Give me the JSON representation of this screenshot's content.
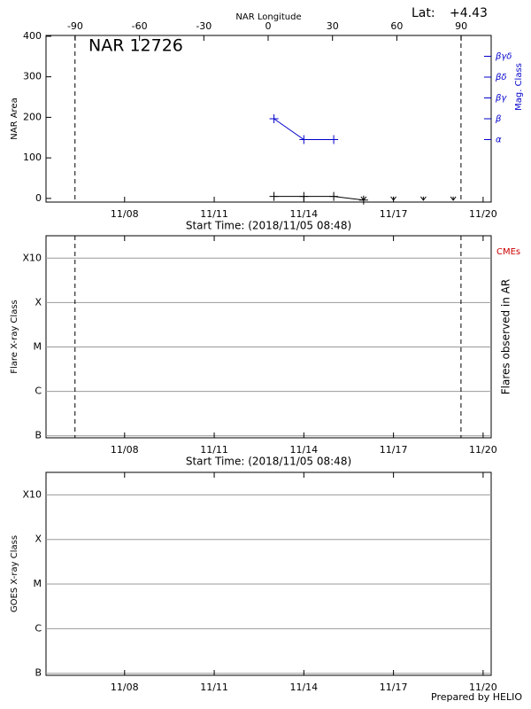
{
  "nar_label": "NAR 12726",
  "latitude": {
    "label": "Lat:",
    "value": "+4.43"
  },
  "prepared_by": "Prepared by HELIO",
  "chart_data": [
    {
      "type": "line",
      "xlabel": "Start Time: (2018/11/05 08:48)",
      "ylabel": "NAR Area",
      "y2label": "Mag. Class",
      "x2label": "NAR Longitude",
      "y2_color": "#0000cc",
      "xlim": [
        5.37,
        20.27
      ],
      "xticks": [
        {
          "value": 8,
          "label": "11/08"
        },
        {
          "value": 11,
          "label": "11/11"
        },
        {
          "value": 14,
          "label": "11/14"
        },
        {
          "value": 17,
          "label": "11/17"
        },
        {
          "value": 20,
          "label": "11/20"
        }
      ],
      "x2lim": [
        -103.6,
        104
      ],
      "x2ticks": [
        -90,
        -60,
        -30,
        0,
        30,
        60,
        90
      ],
      "ylim": [
        -9,
        402
      ],
      "yticks": [
        0,
        100,
        200,
        300,
        400
      ],
      "y2lim": [
        0,
        8
      ],
      "y2ticks": [
        {
          "value": 3,
          "label": "α"
        },
        {
          "value": 4,
          "label": "β"
        },
        {
          "value": 5,
          "label": "βγ"
        },
        {
          "value": 6,
          "label": "βδ"
        },
        {
          "value": 7,
          "label": "βγδ"
        }
      ],
      "limb_lines": [
        6.34,
        19.26
      ],
      "series": [
        {
          "x": [
            13,
            14,
            15,
            16
          ],
          "values": [
            5,
            5,
            5,
            -4
          ],
          "color": "#000000",
          "marker": "plus"
        },
        {
          "x": [
            13,
            14,
            15
          ],
          "values": [
            4,
            3,
            3
          ],
          "color": "#0000cc",
          "marker": "plus",
          "axis": "y2"
        },
        {
          "x": [
            16,
            17,
            18,
            19
          ],
          "values": [
            0,
            0,
            0,
            0
          ],
          "color": "#000000",
          "marker": "arrow",
          "line": false
        }
      ]
    },
    {
      "type": "line",
      "xlabel": "Start Time: (2018/11/05 08:48)",
      "ylabel": "Flare X-ray Class",
      "y2label": "Flares observed in AR",
      "annotation": "CMEs",
      "annotation_color": "#cc0000",
      "xlim": [
        5.37,
        20.27
      ],
      "xticks": [
        {
          "value": 8,
          "label": "11/08"
        },
        {
          "value": 11,
          "label": "11/11"
        },
        {
          "value": 14,
          "label": "11/14"
        },
        {
          "value": 17,
          "label": "11/17"
        },
        {
          "value": 20,
          "label": "11/20"
        }
      ],
      "log": true,
      "ylim": [
        9e-08,
        0.0032
      ],
      "yticks": [
        {
          "value": 1e-07,
          "label": "B"
        },
        {
          "value": 1e-06,
          "label": "C"
        },
        {
          "value": 1e-05,
          "label": "M"
        },
        {
          "value": 0.0001,
          "label": "X"
        },
        {
          "value": 0.001,
          "label": "X10"
        }
      ],
      "grid": true,
      "limb_lines": [
        6.34,
        19.26
      ],
      "series": []
    },
    {
      "type": "line",
      "ylabel": "GOES X-ray Class",
      "xlim": [
        5.37,
        20.27
      ],
      "xticks": [
        {
          "value": 8,
          "label": "11/08"
        },
        {
          "value": 11,
          "label": "11/11"
        },
        {
          "value": 14,
          "label": "11/14"
        },
        {
          "value": 17,
          "label": "11/17"
        },
        {
          "value": 20,
          "label": "11/20"
        }
      ],
      "log": true,
      "ylim": [
        9e-08,
        0.0032
      ],
      "yticks": [
        {
          "value": 1e-07,
          "label": "B"
        },
        {
          "value": 1e-06,
          "label": "C"
        },
        {
          "value": 1e-05,
          "label": "M"
        },
        {
          "value": 0.0001,
          "label": "X"
        },
        {
          "value": 0.001,
          "label": "X10"
        }
      ],
      "grid": true,
      "series": []
    }
  ]
}
